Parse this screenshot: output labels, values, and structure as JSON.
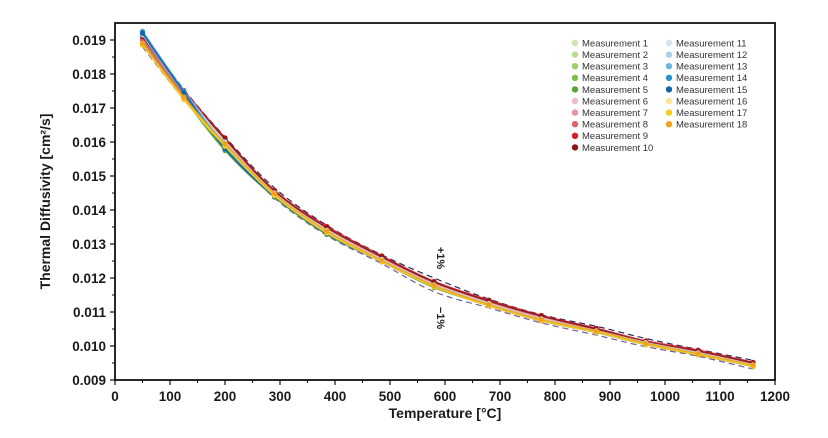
{
  "chart_data": {
    "type": "line",
    "xlabel": "Temperature [°C]",
    "ylabel": "Thermal Diffusivity [cm²/s]",
    "xlim": [
      0,
      1200
    ],
    "ylim": [
      0.009,
      0.0195
    ],
    "xticks": [
      0,
      100,
      200,
      300,
      400,
      500,
      600,
      700,
      800,
      900,
      1000,
      1100,
      1200
    ],
    "xtick_labels": [
      "0",
      "100",
      "200",
      "300",
      "400",
      "500",
      "600",
      "700",
      "800",
      "900",
      "1000",
      "1100",
      "1200"
    ],
    "yticks": [
      0.009,
      0.01,
      0.011,
      0.012,
      0.013,
      0.014,
      0.015,
      0.016,
      0.017,
      0.018,
      0.019
    ],
    "ytick_labels": [
      "0.009",
      "0.010",
      "0.011",
      "0.012",
      "0.013",
      "0.014",
      "0.015",
      "0.016",
      "0.017",
      "0.018",
      "0.019"
    ],
    "x": [
      50,
      125,
      200,
      290,
      385,
      485,
      580,
      680,
      775,
      875,
      965,
      1060,
      1160
    ],
    "reference": [
      0.019,
      0.0174,
      0.016,
      0.0145,
      0.0134,
      0.01255,
      0.0118,
      0.01125,
      0.0108,
      0.01045,
      0.0101,
      0.0098,
      0.00945
    ],
    "band_upper": [
      0.0192,
      0.01755,
      0.01615,
      0.01465,
      0.01355,
      0.01268,
      0.012,
      0.01138,
      0.01092,
      0.01058,
      0.01022,
      0.0099,
      0.00958
    ],
    "band_lower": [
      0.0188,
      0.01725,
      0.01585,
      0.01435,
      0.01325,
      0.01242,
      0.0116,
      0.01112,
      0.01068,
      0.01032,
      0.00998,
      0.0097,
      0.00932
    ],
    "band_upper_label": "+1%",
    "band_lower_label": "−1%",
    "legend_position": "top-right",
    "series": [
      {
        "name": "Measurement 1",
        "color": "#cfe6b0",
        "values": [
          0.01915,
          0.01745,
          0.01605,
          0.01455,
          0.01345,
          0.0126,
          0.01185,
          0.0113,
          0.01085,
          0.0105,
          0.0101,
          0.0098,
          0.0095
        ]
      },
      {
        "name": "Measurement 2",
        "color": "#b8dd8c",
        "values": [
          0.0191,
          0.0174,
          0.016,
          0.0145,
          0.0134,
          0.01255,
          0.0118,
          0.01125,
          0.0108,
          0.01045,
          0.0101,
          0.0098,
          0.00945
        ]
      },
      {
        "name": "Measurement 3",
        "color": "#9ccf66",
        "values": [
          0.019,
          0.01735,
          0.01595,
          0.01448,
          0.01338,
          0.01252,
          0.01178,
          0.01122,
          0.01078,
          0.01044,
          0.01008,
          0.00978,
          0.00944
        ]
      },
      {
        "name": "Measurement 4",
        "color": "#7ebf48",
        "values": [
          0.01905,
          0.01738,
          0.0158,
          0.0144,
          0.0133,
          0.0125,
          0.01175,
          0.0112,
          0.01075,
          0.0104,
          0.01005,
          0.00975,
          0.0094
        ]
      },
      {
        "name": "Measurement 5",
        "color": "#5aa532",
        "values": [
          0.019,
          0.0173,
          0.01575,
          0.01438,
          0.01328,
          0.01248,
          0.01172,
          0.0112,
          0.01075,
          0.01042,
          0.01005,
          0.00975,
          0.0094
        ]
      },
      {
        "name": "Measurement 6",
        "color": "#f3bcc2",
        "values": [
          0.0191,
          0.0175,
          0.0161,
          0.01455,
          0.01345,
          0.0126,
          0.01185,
          0.0113,
          0.01085,
          0.0105,
          0.01012,
          0.00985,
          0.0095
        ]
      },
      {
        "name": "Measurement 7",
        "color": "#e8949c",
        "values": [
          0.01905,
          0.0174,
          0.01605,
          0.0145,
          0.0134,
          0.01258,
          0.01182,
          0.01128,
          0.01082,
          0.01048,
          0.0101,
          0.0098,
          0.00948
        ]
      },
      {
        "name": "Measurement 8",
        "color": "#d9626e",
        "values": [
          0.019,
          0.01738,
          0.016,
          0.01448,
          0.01338,
          0.01255,
          0.0118,
          0.01125,
          0.0108,
          0.01046,
          0.01008,
          0.00978,
          0.00945
        ]
      },
      {
        "name": "Measurement 9",
        "color": "#d0202a",
        "values": [
          0.01915,
          0.01752,
          0.01612,
          0.01458,
          0.01352,
          0.01265,
          0.0119,
          0.01135,
          0.0109,
          0.01052,
          0.01015,
          0.00988,
          0.00952
        ]
      },
      {
        "name": "Measurement 10",
        "color": "#8c1518",
        "values": [
          0.0191,
          0.01748,
          0.0161,
          0.01455,
          0.01348,
          0.01262,
          0.01188,
          0.01132,
          0.01088,
          0.0105,
          0.01012,
          0.00985,
          0.0095
        ]
      },
      {
        "name": "Measurement 11",
        "color": "#cfe4ee",
        "values": [
          0.0192,
          0.0175,
          0.016,
          0.0145,
          0.0134,
          0.01255,
          0.0118,
          0.01125,
          0.0108,
          0.01045,
          0.0101,
          0.0098,
          0.00945
        ]
      },
      {
        "name": "Measurement 12",
        "color": "#a9d0e6",
        "values": [
          0.01915,
          0.01745,
          0.01598,
          0.01448,
          0.01338,
          0.01252,
          0.01178,
          0.01122,
          0.01078,
          0.01044,
          0.01008,
          0.00978,
          0.00944
        ]
      },
      {
        "name": "Measurement 13",
        "color": "#6fb6dc",
        "values": [
          0.0192,
          0.01748,
          0.0159,
          0.01445,
          0.01335,
          0.0125,
          0.01176,
          0.0112,
          0.01076,
          0.01042,
          0.01006,
          0.00976,
          0.00942
        ]
      },
      {
        "name": "Measurement 14",
        "color": "#2f93cf",
        "values": [
          0.01925,
          0.0175,
          0.01585,
          0.01442,
          0.01332,
          0.01248,
          0.01175,
          0.0112,
          0.01075,
          0.0104,
          0.01005,
          0.00975,
          0.0094
        ]
      },
      {
        "name": "Measurement 15",
        "color": "#1464a8",
        "values": [
          0.0192,
          0.01745,
          0.0158,
          0.0144,
          0.0133,
          0.01248,
          0.01174,
          0.01118,
          0.01074,
          0.0104,
          0.01004,
          0.00974,
          0.0094
        ]
      },
      {
        "name": "Measurement 16",
        "color": "#f9e79a",
        "values": [
          0.0189,
          0.01728,
          0.0159,
          0.01445,
          0.01335,
          0.0125,
          0.01176,
          0.0112,
          0.01076,
          0.01042,
          0.01006,
          0.00976,
          0.00942
        ]
      },
      {
        "name": "Measurement 17",
        "color": "#f5cd1c",
        "values": [
          0.01885,
          0.01725,
          0.01588,
          0.01442,
          0.01332,
          0.01248,
          0.01174,
          0.01118,
          0.01074,
          0.0104,
          0.01004,
          0.00974,
          0.0094
        ]
      },
      {
        "name": "Measurement 18",
        "color": "#f0a21e",
        "values": [
          0.0189,
          0.01732,
          0.01595,
          0.01448,
          0.01338,
          0.01252,
          0.01178,
          0.01122,
          0.01078,
          0.01044,
          0.01008,
          0.00978,
          0.00944
        ]
      }
    ]
  }
}
